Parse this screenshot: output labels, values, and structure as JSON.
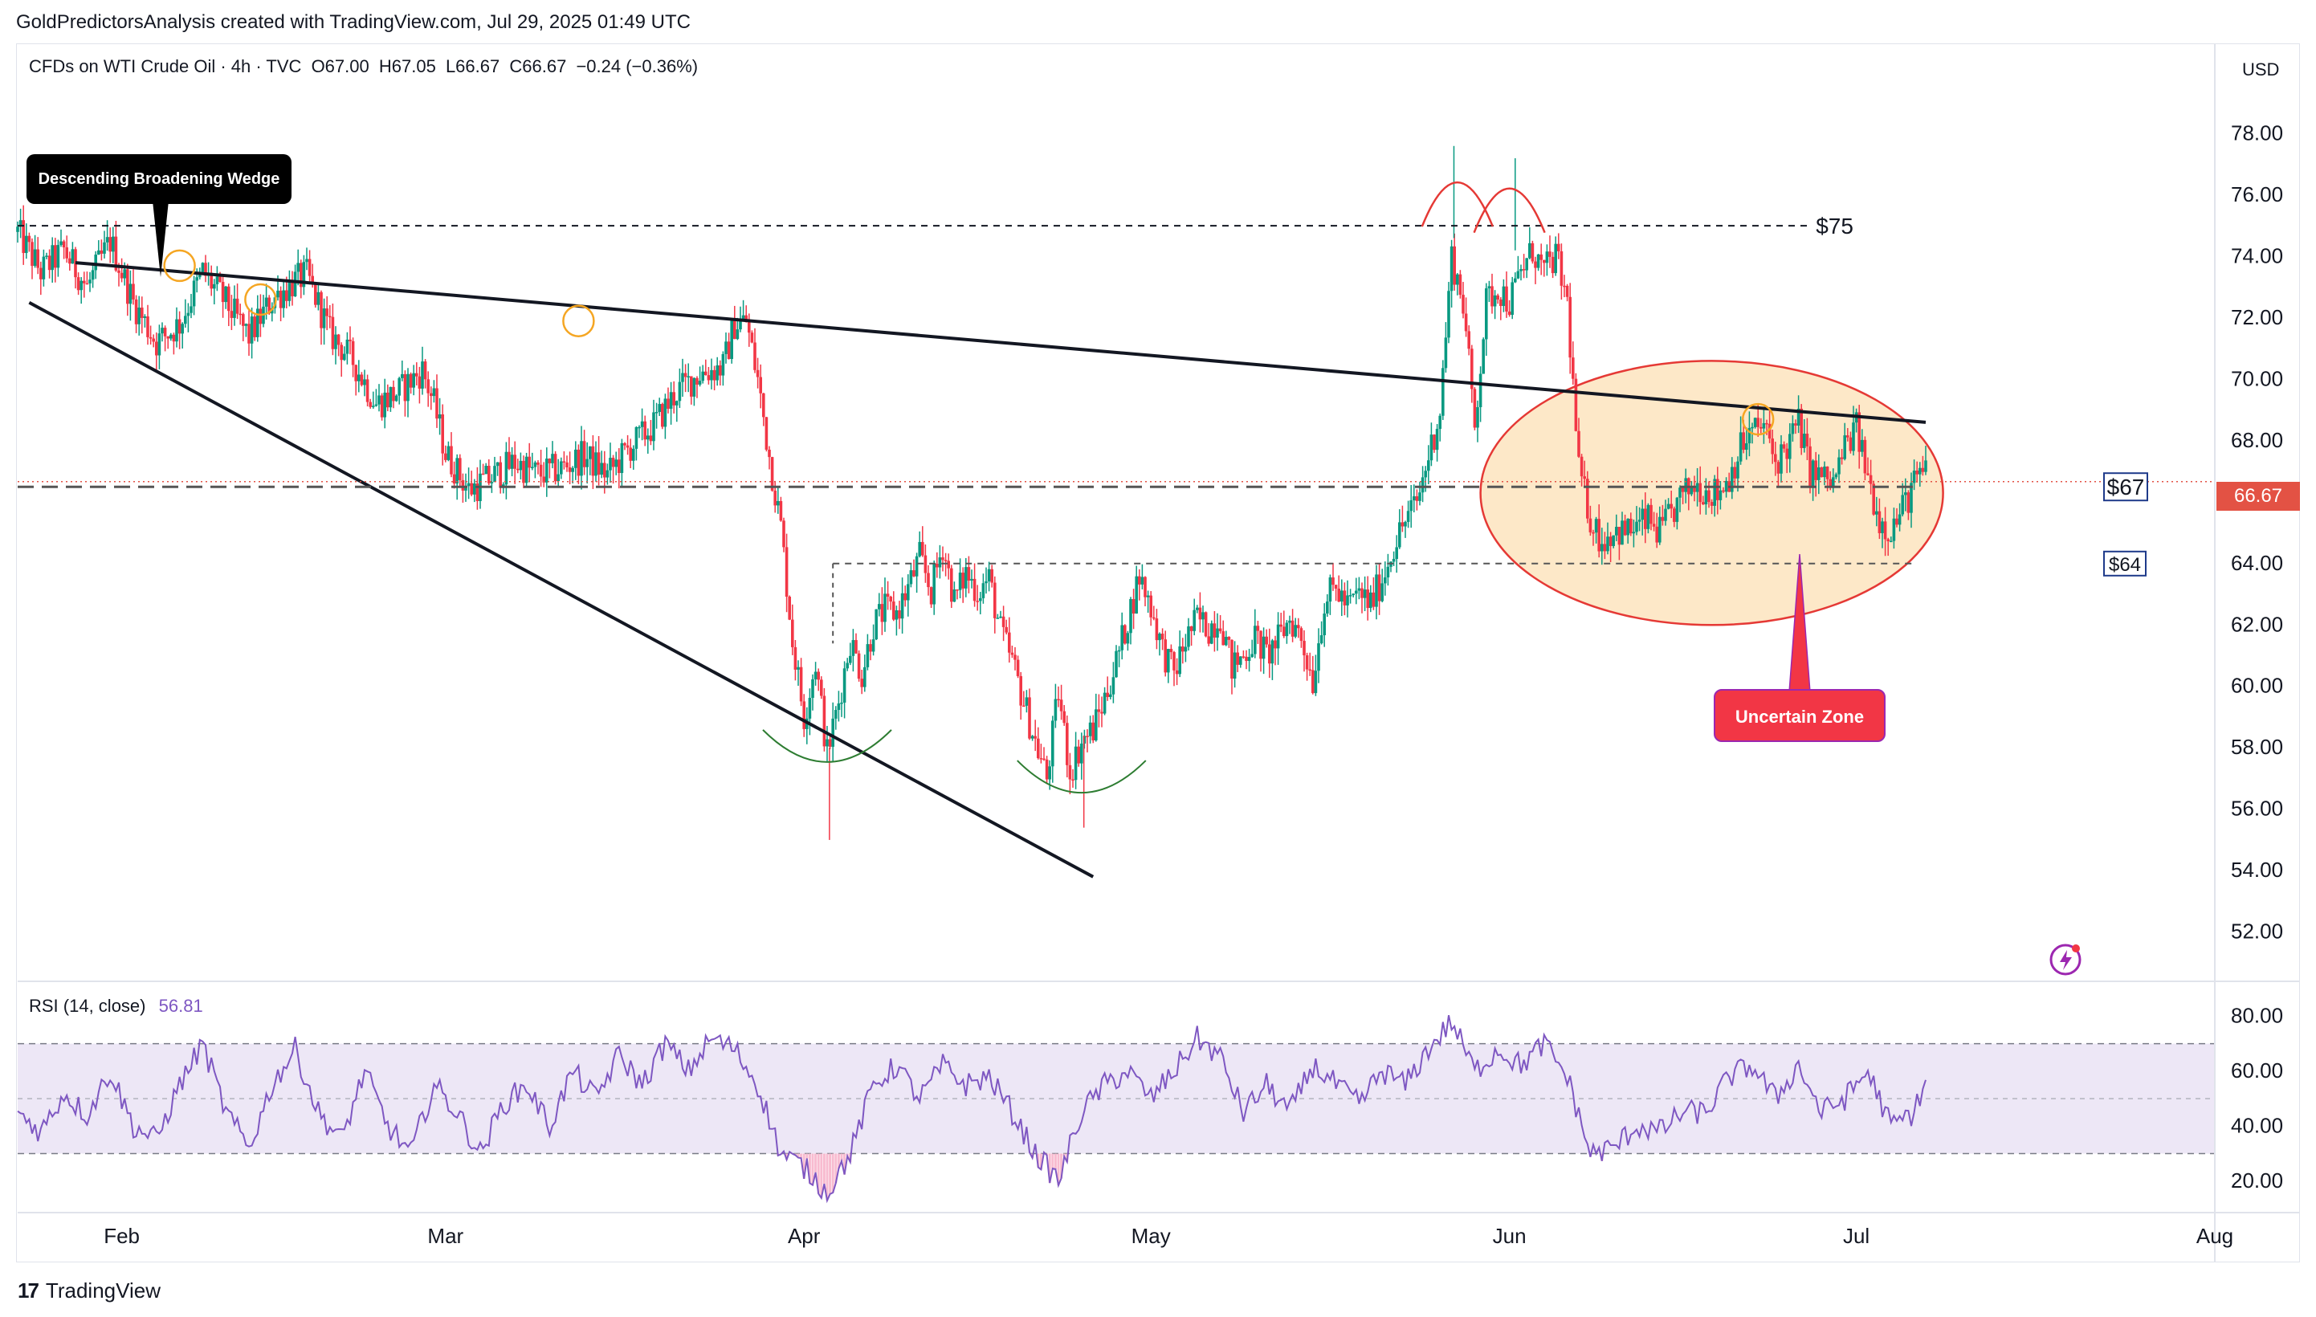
{
  "header": {
    "attribution": "GoldPredictorsAnalysis created with TradingView.com, Jul 29, 2025 01:49 UTC"
  },
  "legend": {
    "symbol": "CFDs on WTI Crude Oil · 4h · TVC",
    "open": "O67.00",
    "high": "H67.05",
    "low": "L66.67",
    "close": "C66.67",
    "change": "−0.24 (−0.36%)"
  },
  "currency": "USD",
  "current_price_label": "66.67",
  "rsi": {
    "label": "RSI (14, close)",
    "value": "56.81"
  },
  "annotations": {
    "wedge_label": "Descending Broadening Wedge",
    "uncertain_zone_label": "Uncertain Zone",
    "level_75": "$75",
    "level_67": "$67",
    "level_64": "$64"
  },
  "footer": {
    "brand": "TradingView"
  },
  "colors": {
    "up": "#089981",
    "down": "#f23645",
    "rsi_line": "#7e57c2",
    "rsi_band": "#ede7f6",
    "zone_fill": "#fde8c8",
    "zone_stroke": "#e53935",
    "highlight_circle": "#f5a623",
    "current_price": "#e35244"
  },
  "chart_data": {
    "type": "candlestick",
    "timeframe": "4h",
    "y_price_ticks": [
      52,
      54,
      56,
      58,
      60,
      62,
      64,
      66,
      68,
      70,
      72,
      74,
      76,
      78
    ],
    "y_price_tick_labels": [
      "52.00",
      "54.00",
      "56.00",
      "58.00",
      "60.00",
      "62.00",
      "64.00",
      "66.00",
      "68.00",
      "70.00",
      "72.00",
      "74.00",
      "76.00",
      "78.00"
    ],
    "x_tick_labels": [
      "Feb",
      "Mar",
      "Apr",
      "May",
      "Jun",
      "Jul",
      "Aug"
    ],
    "x_ticks_days": [
      2,
      30,
      61,
      91,
      122,
      152,
      183
    ],
    "y_price_range": [
      50.5,
      80
    ],
    "x_range_days": [
      -7,
      183
    ],
    "price_keypoints_day_value": [
      [
        -7,
        74.8
      ],
      [
        -5,
        73.5
      ],
      [
        -3,
        74.2
      ],
      [
        -1,
        73.0
      ],
      [
        1,
        74.5
      ],
      [
        3,
        72.5
      ],
      [
        5,
        71.2
      ],
      [
        7,
        71.8
      ],
      [
        9,
        73.5
      ],
      [
        11,
        72.5
      ],
      [
        13,
        71.4
      ],
      [
        15,
        72.6
      ],
      [
        17,
        73.2
      ],
      [
        18,
        73.4
      ],
      [
        20,
        71.5
      ],
      [
        22,
        70.6
      ],
      [
        24,
        69.2
      ],
      [
        26,
        69.6
      ],
      [
        28,
        70.3
      ],
      [
        29,
        69.2
      ],
      [
        30,
        67.6
      ],
      [
        32,
        66.4
      ],
      [
        34,
        66.8
      ],
      [
        36,
        67.3
      ],
      [
        38,
        66.9
      ],
      [
        40,
        67.1
      ],
      [
        42,
        67.5
      ],
      [
        44,
        66.9
      ],
      [
        46,
        67.8
      ],
      [
        48,
        68.5
      ],
      [
        50,
        69.6
      ],
      [
        52,
        70.2
      ],
      [
        54,
        70.4
      ],
      [
        55,
        71.8
      ],
      [
        56,
        71.9
      ],
      [
        57,
        70.0
      ],
      [
        58,
        67.5
      ],
      [
        59,
        65.2
      ],
      [
        60,
        61.5
      ],
      [
        61,
        59.0
      ],
      [
        62,
        60.8
      ],
      [
        63,
        57.8
      ],
      [
        64,
        59.5
      ],
      [
        65,
        61.5
      ],
      [
        66,
        60.4
      ],
      [
        67,
        62.0
      ],
      [
        68,
        62.5
      ],
      [
        69,
        62.4
      ],
      [
        70,
        63.2
      ],
      [
        71,
        64.2
      ],
      [
        72,
        63.1
      ],
      [
        73,
        64.6
      ],
      [
        74,
        62.8
      ],
      [
        75,
        63.7
      ],
      [
        76,
        63.1
      ],
      [
        77,
        63.5
      ],
      [
        78,
        61.8
      ],
      [
        79,
        60.8
      ],
      [
        80,
        59.5
      ],
      [
        81,
        58.2
      ],
      [
        82,
        57.0
      ],
      [
        83,
        59.8
      ],
      [
        84,
        57.2
      ],
      [
        85,
        58.2
      ],
      [
        86,
        58.6
      ],
      [
        87,
        59.6
      ],
      [
        88,
        60.8
      ],
      [
        89,
        62.2
      ],
      [
        90,
        63.6
      ],
      [
        91,
        62.6
      ],
      [
        92,
        61.2
      ],
      [
        93,
        60.4
      ],
      [
        94,
        61.5
      ],
      [
        95,
        62.2
      ],
      [
        96,
        61.9
      ],
      [
        97,
        62.3
      ],
      [
        98,
        60.6
      ],
      [
        99,
        61.0
      ],
      [
        100,
        61.6
      ],
      [
        101,
        61.0
      ],
      [
        102,
        61.5
      ],
      [
        103,
        62.2
      ],
      [
        104,
        61.6
      ],
      [
        105,
        60.2
      ],
      [
        106,
        62.8
      ],
      [
        107,
        63.2
      ],
      [
        108,
        62.6
      ],
      [
        109,
        63.0
      ],
      [
        110,
        62.7
      ],
      [
        111,
        63.5
      ],
      [
        112,
        64.6
      ],
      [
        113,
        65.4
      ],
      [
        114,
        66.0
      ],
      [
        115,
        67.5
      ],
      [
        116,
        69.0
      ],
      [
        117,
        74.0
      ],
      [
        118,
        72.5
      ],
      [
        119,
        68.5
      ],
      [
        120,
        72.5
      ],
      [
        121,
        73.0
      ],
      [
        122,
        72.5
      ],
      [
        123,
        73.5
      ],
      [
        124,
        74.2
      ],
      [
        125,
        73.5
      ],
      [
        126,
        74.0
      ],
      [
        127,
        72.5
      ],
      [
        128,
        67.0
      ],
      [
        129,
        65.5
      ],
      [
        130,
        64.7
      ],
      [
        131,
        65.1
      ],
      [
        132,
        65.0
      ],
      [
        133,
        65.2
      ],
      [
        134,
        65.4
      ],
      [
        135,
        65.0
      ],
      [
        136,
        65.6
      ],
      [
        137,
        66.2
      ],
      [
        138,
        66.6
      ],
      [
        139,
        66.4
      ],
      [
        140,
        66.3
      ],
      [
        141,
        66.8
      ],
      [
        142,
        67.8
      ],
      [
        143,
        68.3
      ],
      [
        144,
        68.5
      ],
      [
        145,
        67.3
      ],
      [
        146,
        67.8
      ],
      [
        147,
        68.6
      ],
      [
        148,
        67.0
      ],
      [
        149,
        66.8
      ],
      [
        150,
        66.6
      ],
      [
        151,
        67.8
      ],
      [
        152,
        68.4
      ],
      [
        153,
        66.8
      ],
      [
        154,
        65.4
      ],
      [
        155,
        65.1
      ],
      [
        156,
        65.8
      ],
      [
        157,
        66.6
      ],
      [
        158,
        67.0
      ]
    ],
    "annotation_lines": {
      "wedge_upper_start": [
        -2,
        73.8
      ],
      "wedge_upper_end": [
        158,
        68.6
      ],
      "wedge_lower_start": [
        -6,
        72.5
      ],
      "wedge_lower_end": [
        86,
        53.8
      ],
      "resistance_75": 75,
      "level_67": 66.5,
      "level_64": 64
    },
    "rsi_ticks": [
      20,
      40,
      60,
      80
    ],
    "rsi_tick_labels": [
      "20.00",
      "40.00",
      "60.00",
      "80.00"
    ],
    "rsi_range": [
      10,
      88
    ],
    "rsi_band": [
      30,
      70
    ],
    "rsi_mid": 50,
    "rsi_keypoints_day_value": [
      [
        -7,
        45
      ],
      [
        -5,
        38
      ],
      [
        -3,
        52
      ],
      [
        -1,
        44
      ],
      [
        1,
        60
      ],
      [
        3,
        40
      ],
      [
        5,
        35
      ],
      [
        7,
        55
      ],
      [
        9,
        70
      ],
      [
        11,
        45
      ],
      [
        13,
        32
      ],
      [
        15,
        55
      ],
      [
        17,
        68
      ],
      [
        19,
        45
      ],
      [
        21,
        35
      ],
      [
        23,
        60
      ],
      [
        25,
        40
      ],
      [
        27,
        30
      ],
      [
        29,
        55
      ],
      [
        31,
        45
      ],
      [
        33,
        30
      ],
      [
        35,
        48
      ],
      [
        37,
        55
      ],
      [
        39,
        40
      ],
      [
        41,
        60
      ],
      [
        43,
        50
      ],
      [
        45,
        66
      ],
      [
        47,
        55
      ],
      [
        49,
        70
      ],
      [
        51,
        60
      ],
      [
        53,
        72
      ],
      [
        55,
        68
      ],
      [
        57,
        55
      ],
      [
        59,
        30
      ],
      [
        61,
        25
      ],
      [
        63,
        16
      ],
      [
        65,
        30
      ],
      [
        67,
        55
      ],
      [
        69,
        62
      ],
      [
        71,
        50
      ],
      [
        73,
        62
      ],
      [
        75,
        55
      ],
      [
        77,
        58
      ],
      [
        79,
        45
      ],
      [
        81,
        30
      ],
      [
        83,
        20
      ],
      [
        85,
        45
      ],
      [
        87,
        55
      ],
      [
        89,
        60
      ],
      [
        91,
        50
      ],
      [
        93,
        60
      ],
      [
        95,
        72
      ],
      [
        97,
        65
      ],
      [
        99,
        45
      ],
      [
        101,
        55
      ],
      [
        103,
        45
      ],
      [
        105,
        62
      ],
      [
        107,
        55
      ],
      [
        109,
        48
      ],
      [
        111,
        60
      ],
      [
        113,
        55
      ],
      [
        115,
        68
      ],
      [
        117,
        78
      ],
      [
        119,
        60
      ],
      [
        121,
        68
      ],
      [
        123,
        62
      ],
      [
        125,
        70
      ],
      [
        127,
        58
      ],
      [
        129,
        30
      ],
      [
        131,
        32
      ],
      [
        133,
        40
      ],
      [
        135,
        38
      ],
      [
        137,
        45
      ],
      [
        139,
        45
      ],
      [
        141,
        58
      ],
      [
        143,
        62
      ],
      [
        145,
        50
      ],
      [
        147,
        62
      ],
      [
        149,
        45
      ],
      [
        151,
        50
      ],
      [
        153,
        60
      ],
      [
        155,
        40
      ],
      [
        157,
        45
      ],
      [
        158,
        57
      ]
    ]
  }
}
